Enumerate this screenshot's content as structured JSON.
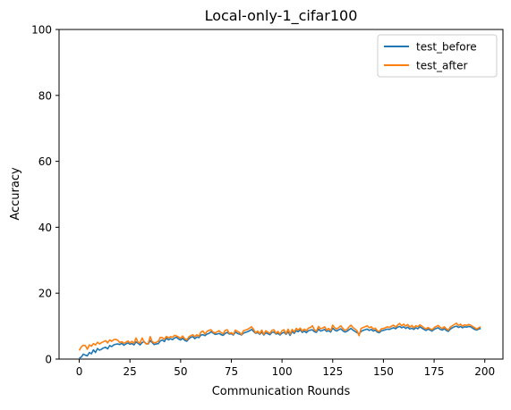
{
  "chart_data": {
    "type": "line",
    "title": "Local-only-1_cifar100",
    "xlabel": "Communication Rounds",
    "ylabel": "Accuracy",
    "xlim": [
      -9.95,
      208.95
    ],
    "ylim": [
      0,
      100
    ],
    "xticks": [
      0,
      25,
      50,
      75,
      100,
      125,
      150,
      175,
      200
    ],
    "yticks": [
      0,
      20,
      40,
      60,
      80,
      100
    ],
    "legend_position": "top-right",
    "grid": false,
    "series": [
      {
        "name": "test_before",
        "color": "#1f77b4",
        "values": [
          0.3,
          0.6,
          1.5,
          1.2,
          1.0,
          2.0,
          1.6,
          2.8,
          2.0,
          3.2,
          2.7,
          3.0,
          3.4,
          3.6,
          3.1,
          4.1,
          3.8,
          4.3,
          4.5,
          4.6,
          4.4,
          4.8,
          4.2,
          4.6,
          4.9,
          4.5,
          4.7,
          4.3,
          5.2,
          4.8,
          4.3,
          5.0,
          5.3,
          4.7,
          4.6,
          5.6,
          5.0,
          4.4,
          4.6,
          4.7,
          5.5,
          5.8,
          5.3,
          6.4,
          5.8,
          6.2,
          5.9,
          6.4,
          6.6,
          6.1,
          5.8,
          6.3,
          5.7,
          5.4,
          6.1,
          6.6,
          6.8,
          6.2,
          6.7,
          6.5,
          7.3,
          7.4,
          7.1,
          7.6,
          7.8,
          8.3,
          7.9,
          7.5,
          7.6,
          7.8,
          7.4,
          7.2,
          7.8,
          8.1,
          7.6,
          7.7,
          7.3,
          8.2,
          7.8,
          7.6,
          7.3,
          7.9,
          8.1,
          8.3,
          8.6,
          9.0,
          8.4,
          7.8,
          8.1,
          7.5,
          8.2,
          7.3,
          8.0,
          7.7,
          7.4,
          8.1,
          8.2,
          7.6,
          7.8,
          7.3,
          7.9,
          8.1,
          7.5,
          8.3,
          7.2,
          8.4,
          7.8,
          8.6,
          8.3,
          8.9,
          8.1,
          8.5,
          8.0,
          8.6,
          8.8,
          8.9,
          8.3,
          8.1,
          9.1,
          8.5,
          8.7,
          9.0,
          8.4,
          8.6,
          8.2,
          9.4,
          8.8,
          8.5,
          8.9,
          9.2,
          8.6,
          8.2,
          8.4,
          8.9,
          9.3,
          8.8,
          8.4,
          8.0,
          7.6,
          8.4,
          8.7,
          8.9,
          9.1,
          8.7,
          9.0,
          8.5,
          8.8,
          8.2,
          8.0,
          8.6,
          8.7,
          8.9,
          9.1,
          9.0,
          9.3,
          9.5,
          9.2,
          9.7,
          9.9,
          9.5,
          9.8,
          9.3,
          9.7,
          9.1,
          9.4,
          9.0,
          9.5,
          9.2,
          9.8,
          9.4,
          9.0,
          8.7,
          9.1,
          8.8,
          8.5,
          9.0,
          9.3,
          9.5,
          9.0,
          8.8,
          9.2,
          8.7,
          8.4,
          9.1,
          9.5,
          9.8,
          10.0,
          9.6,
          9.9,
          9.5,
          9.8,
          9.7,
          9.9,
          9.8,
          9.4,
          9.0,
          8.8,
          9.1,
          9.3
        ]
      },
      {
        "name": "test_after",
        "color": "#ff7f0e",
        "values": [
          2.6,
          3.7,
          4.2,
          4.1,
          3.0,
          4.3,
          3.9,
          4.7,
          4.3,
          5.1,
          4.6,
          5.0,
          5.3,
          5.6,
          4.9,
          5.8,
          5.4,
          5.9,
          6.0,
          5.7,
          5.0,
          5.3,
          4.8,
          5.1,
          5.5,
          4.9,
          5.4,
          4.8,
          6.4,
          5.1,
          4.9,
          6.4,
          5.2,
          4.6,
          4.7,
          6.8,
          5.3,
          4.9,
          5.1,
          5.4,
          6.6,
          6.5,
          6.0,
          6.9,
          6.4,
          6.8,
          6.6,
          7.2,
          7.0,
          6.7,
          6.3,
          7.0,
          6.2,
          5.8,
          6.7,
          7.1,
          7.4,
          6.8,
          7.4,
          6.9,
          8.2,
          8.5,
          7.6,
          8.4,
          8.7,
          8.9,
          8.2,
          7.9,
          8.3,
          8.6,
          8.0,
          7.7,
          8.7,
          8.9,
          7.8,
          8.0,
          7.5,
          8.8,
          8.4,
          8.1,
          7.4,
          8.6,
          8.8,
          9.0,
          9.4,
          9.8,
          9.0,
          7.9,
          8.5,
          7.7,
          8.8,
          7.5,
          8.6,
          8.2,
          7.8,
          8.7,
          8.9,
          7.8,
          8.4,
          7.6,
          8.6,
          8.9,
          7.7,
          9.1,
          7.6,
          9.0,
          8.2,
          9.3,
          8.8,
          9.4,
          8.5,
          9.1,
          8.6,
          9.4,
          9.6,
          10.1,
          8.9,
          8.5,
          9.9,
          9.2,
          9.4,
          9.8,
          8.8,
          9.3,
          8.6,
          10.3,
          9.5,
          9.1,
          9.6,
          10.1,
          9.3,
          8.7,
          9.0,
          9.7,
          10.3,
          9.6,
          9.1,
          8.6,
          7.1,
          9.3,
          9.6,
          9.8,
          10.1,
          9.5,
          9.8,
          9.1,
          9.4,
          8.6,
          8.4,
          9.2,
          9.3,
          9.5,
          9.8,
          9.6,
          10.0,
          10.3,
          9.7,
          10.3,
          10.8,
          10.1,
          10.6,
          10.0,
          10.5,
          9.7,
          10.2,
          9.5,
          10.1,
          9.8,
          10.4,
          10.0,
          9.5,
          9.1,
          9.6,
          9.2,
          8.9,
          9.5,
          9.9,
          10.2,
          9.6,
          9.3,
          9.8,
          9.2,
          8.8,
          9.7,
          10.1,
          10.5,
          10.9,
          10.2,
          10.6,
          10.0,
          10.4,
          10.2,
          10.5,
          10.3,
          9.9,
          9.5,
          9.1,
          9.5,
          9.8
        ]
      }
    ]
  }
}
